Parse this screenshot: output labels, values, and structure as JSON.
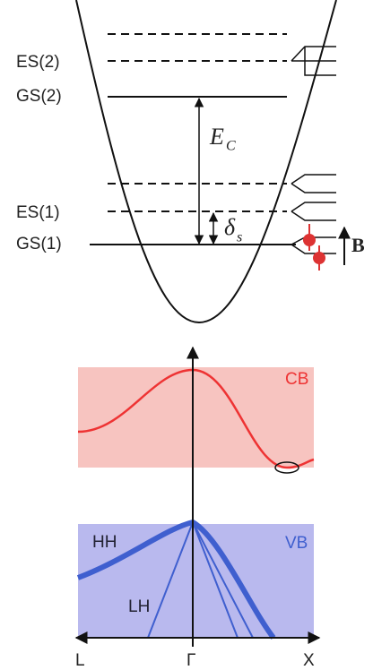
{
  "levels": {
    "es2": "ES(2)",
    "gs2": "GS(2)",
    "es1": "ES(1)",
    "gs1": "GS(1)"
  },
  "charging_energy": {
    "main": "E",
    "sub": "C"
  },
  "splitting": {
    "main": "δ",
    "sub": "s"
  },
  "field": "B",
  "bands": {
    "cb": "CB",
    "vb": "VB",
    "hh": "HH",
    "lh": "LH"
  },
  "k_axis": {
    "left": "L",
    "center": "Γ",
    "right": "X"
  }
}
